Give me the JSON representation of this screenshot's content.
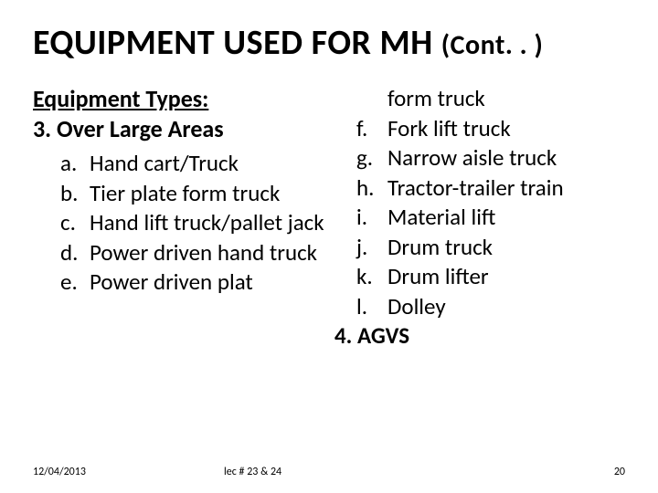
{
  "title_main": "EQUIPMENT USED FOR MH ",
  "title_cont": "(Cont. . )",
  "left": {
    "subhead": "Equipment Types:",
    "section": "3. Over Large Areas",
    "items": [
      {
        "marker": "a.",
        "text": "Hand cart/Truck"
      },
      {
        "marker": "b.",
        "text": "Tier plate form truck"
      },
      {
        "marker": "c.",
        "text": "Hand lift truck/pallet jack"
      },
      {
        "marker": "d.",
        "text": "Power driven hand truck"
      },
      {
        "marker": "e.",
        "text": "Power driven plat"
      }
    ]
  },
  "right": {
    "continuation": "form truck",
    "items": [
      {
        "marker": "f.",
        "text": "Fork lift truck"
      },
      {
        "marker": "g.",
        "text": "Narrow aisle truck"
      },
      {
        "marker": "h.",
        "text": "Tractor-trailer train"
      },
      {
        "marker": "i.",
        "text": "Material lift"
      },
      {
        "marker": "j.",
        "text": "Drum truck"
      },
      {
        "marker": "k.",
        "text": "Drum lifter"
      },
      {
        "marker": "l.",
        "text": "Dolley"
      }
    ],
    "agvs": "4. AGVS"
  },
  "footer": {
    "date": "12/04/2013",
    "center": "lec # 23 & 24",
    "page": "20"
  }
}
